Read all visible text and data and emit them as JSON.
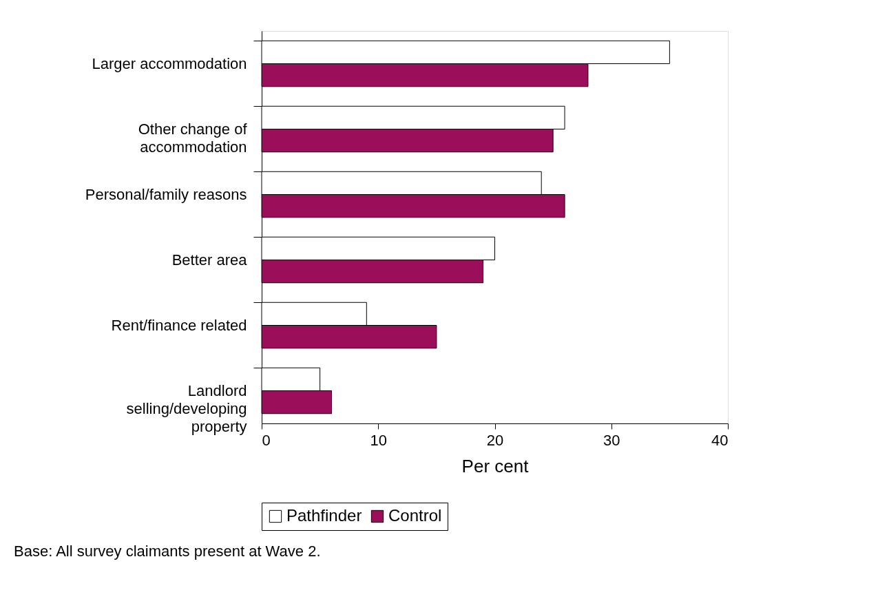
{
  "chart_data": {
    "type": "bar",
    "orientation": "horizontal",
    "xlabel": "Per cent",
    "categories": [
      "Larger accommodation",
      "Other change of accommodation",
      "Personal/family reasons",
      "Better area",
      "Rent/finance related",
      "Landlord selling/developing property"
    ],
    "series": [
      {
        "name": "Pathfinder",
        "color": "#ffffff",
        "values": [
          35,
          26,
          24,
          20,
          9,
          5
        ]
      },
      {
        "name": "Control",
        "color": "#9b0f5a",
        "values": [
          28,
          25,
          26,
          19,
          15,
          6
        ]
      }
    ],
    "xlim": [
      0,
      40
    ],
    "xticks": [
      0,
      10,
      20,
      30,
      40
    ],
    "grid": false,
    "legend": "bottom",
    "annotations": [
      "Base: All survey claimants present at Wave 2."
    ]
  }
}
